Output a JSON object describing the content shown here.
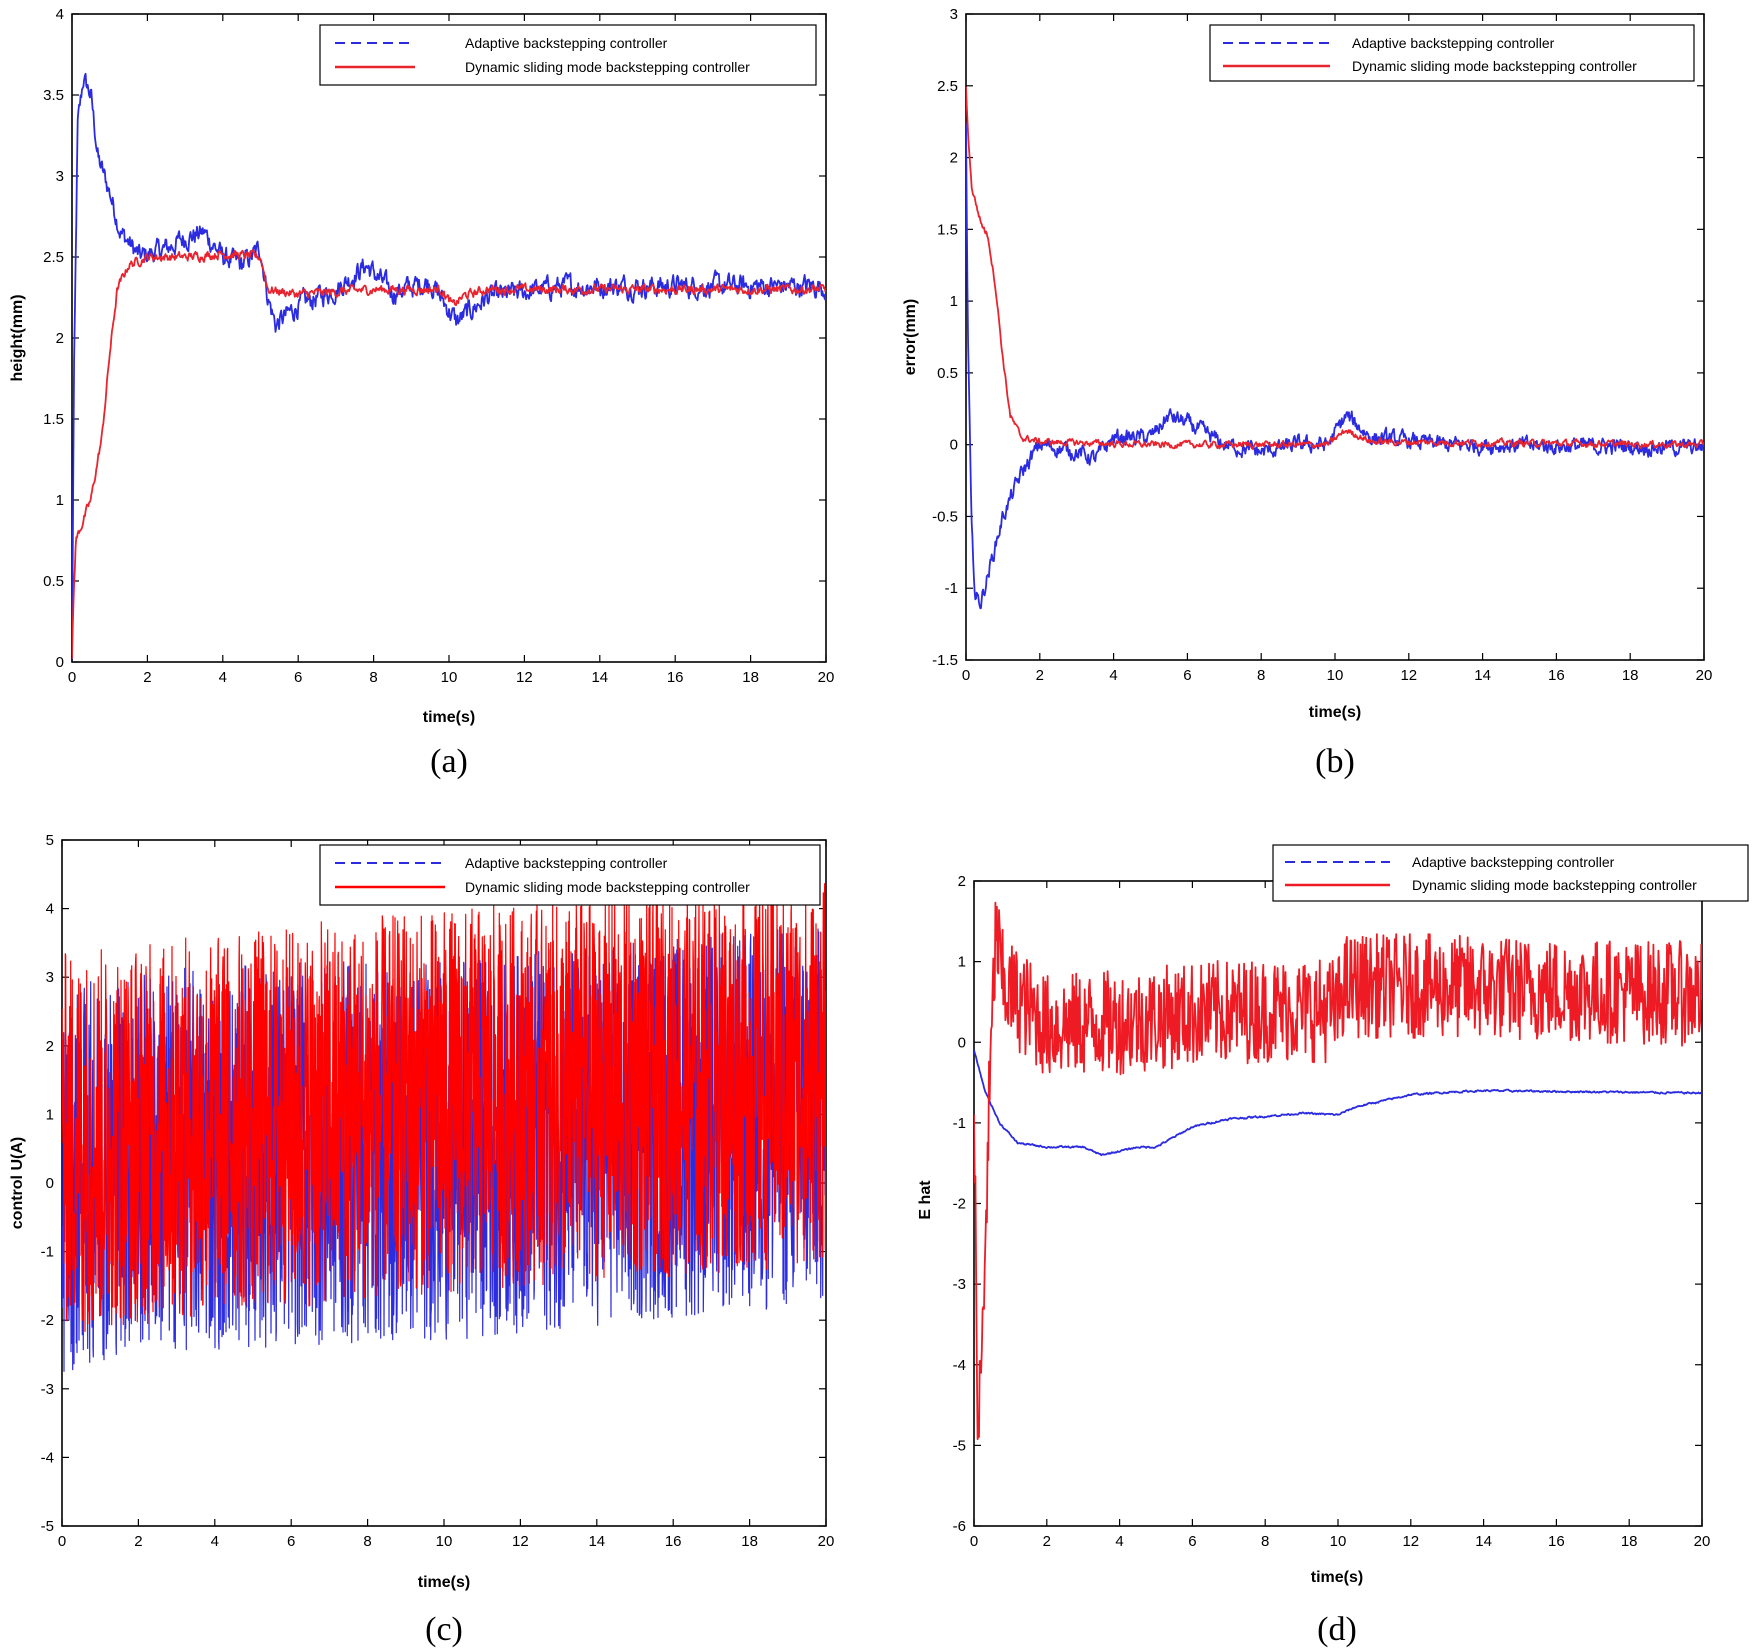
{
  "chart_data": [
    {
      "type": "line",
      "panel": "a",
      "caption": "(a)",
      "xlabel": "time(s)",
      "ylabel": "height(mm)",
      "xlim": [
        0,
        20
      ],
      "ylim": [
        0,
        4
      ],
      "xticks": [
        0,
        2,
        4,
        6,
        8,
        10,
        12,
        14,
        16,
        18,
        20
      ],
      "yticks": [
        0,
        0.5,
        1,
        1.5,
        2,
        2.5,
        3,
        3.5,
        4
      ],
      "legend": "top-right",
      "series": [
        {
          "name": "Adaptive backstepping controller",
          "color": "#2b2bdf",
          "noise": 0.06,
          "points": [
            [
              0,
              0
            ],
            [
              0.05,
              1.7
            ],
            [
              0.15,
              3.3
            ],
            [
              0.3,
              3.6
            ],
            [
              0.5,
              3.5
            ],
            [
              0.7,
              3.1
            ],
            [
              1.0,
              2.9
            ],
            [
              1.3,
              2.65
            ],
            [
              1.8,
              2.5
            ],
            [
              2.5,
              2.55
            ],
            [
              3.0,
              2.62
            ],
            [
              3.5,
              2.65
            ],
            [
              4.0,
              2.5
            ],
            [
              4.5,
              2.45
            ],
            [
              5.0,
              2.55
            ],
            [
              5.2,
              2.25
            ],
            [
              5.4,
              2.08
            ],
            [
              6.0,
              2.2
            ],
            [
              7.0,
              2.3
            ],
            [
              7.8,
              2.45
            ],
            [
              8.5,
              2.28
            ],
            [
              9.5,
              2.35
            ],
            [
              10.2,
              2.1
            ],
            [
              11.0,
              2.25
            ],
            [
              13.0,
              2.32
            ],
            [
              20,
              2.32
            ]
          ]
        },
        {
          "name": "Dynamic sliding mode backstepping controller",
          "color": "#e8242f",
          "noise": 0.025,
          "points": [
            [
              0,
              0
            ],
            [
              0.03,
              0.3
            ],
            [
              0.1,
              0.75
            ],
            [
              0.5,
              1.0
            ],
            [
              0.8,
              1.4
            ],
            [
              1.0,
              1.9
            ],
            [
              1.2,
              2.3
            ],
            [
              1.5,
              2.45
            ],
            [
              2.0,
              2.5
            ],
            [
              3.0,
              2.5
            ],
            [
              4.0,
              2.52
            ],
            [
              5.0,
              2.5
            ],
            [
              5.2,
              2.3
            ],
            [
              6.0,
              2.27
            ],
            [
              8.0,
              2.3
            ],
            [
              9.8,
              2.3
            ],
            [
              10.1,
              2.2
            ],
            [
              10.4,
              2.26
            ],
            [
              11.0,
              2.3
            ],
            [
              20,
              2.3
            ]
          ]
        }
      ]
    },
    {
      "type": "line",
      "panel": "b",
      "caption": "(b)",
      "xlabel": "time(s)",
      "ylabel": "error(mm)",
      "xlim": [
        0,
        20
      ],
      "ylim": [
        -1.5,
        3
      ],
      "xticks": [
        0,
        2,
        4,
        6,
        8,
        10,
        12,
        14,
        16,
        18,
        20
      ],
      "yticks": [
        -1.5,
        -1,
        -0.5,
        0,
        0.5,
        1,
        1.5,
        2,
        2.5,
        3
      ],
      "legend": "top-right",
      "series": [
        {
          "name": "Adaptive backstepping controller",
          "color": "#2b2bdf",
          "noise": 0.05,
          "points": [
            [
              0,
              2.2
            ],
            [
              0.05,
              0.8
            ],
            [
              0.15,
              -0.6
            ],
            [
              0.25,
              -1.05
            ],
            [
              0.4,
              -1.1
            ],
            [
              0.6,
              -0.9
            ],
            [
              1.0,
              -0.5
            ],
            [
              1.5,
              -0.2
            ],
            [
              2.0,
              0.0
            ],
            [
              3.0,
              -0.05
            ],
            [
              3.5,
              -0.1
            ],
            [
              4.0,
              0.05
            ],
            [
              5.0,
              0.05
            ],
            [
              5.5,
              0.2
            ],
            [
              6.0,
              0.15
            ],
            [
              7.0,
              0.0
            ],
            [
              8.0,
              -0.05
            ],
            [
              9.0,
              0.0
            ],
            [
              9.8,
              0.0
            ],
            [
              10.3,
              0.2
            ],
            [
              11.0,
              0.05
            ],
            [
              13.0,
              0.0
            ],
            [
              20,
              -0.02
            ]
          ]
        },
        {
          "name": "Dynamic sliding mode backstepping controller",
          "color": "#e8242f",
          "noise": 0.02,
          "points": [
            [
              0,
              2.5
            ],
            [
              0.05,
              2.2
            ],
            [
              0.15,
              1.8
            ],
            [
              0.4,
              1.55
            ],
            [
              0.6,
              1.45
            ],
            [
              0.8,
              1.1
            ],
            [
              1.0,
              0.6
            ],
            [
              1.2,
              0.2
            ],
            [
              1.5,
              0.05
            ],
            [
              2.0,
              0.02
            ],
            [
              5.0,
              0.0
            ],
            [
              9.8,
              0.0
            ],
            [
              10.3,
              0.1
            ],
            [
              11.0,
              0.02
            ],
            [
              20,
              0.0
            ]
          ]
        }
      ]
    },
    {
      "type": "line",
      "panel": "c",
      "caption": "(c)",
      "xlabel": "time(s)",
      "ylabel": "control U(A)",
      "xlim": [
        0,
        20
      ],
      "ylim": [
        -5,
        5
      ],
      "xticks": [
        0,
        2,
        4,
        6,
        8,
        10,
        12,
        14,
        16,
        18,
        20
      ],
      "yticks": [
        -5,
        -4,
        -3,
        -2,
        -1,
        0,
        1,
        2,
        3,
        4,
        5
      ],
      "legend": "top-right",
      "series": [
        {
          "name": "Adaptive backstepping controller",
          "color": "#2b2bdf",
          "noise": 2.8,
          "points": [
            [
              0,
              0
            ],
            [
              1.5,
              0.3
            ],
            [
              10,
              0.5
            ],
            [
              20,
              1.0
            ]
          ]
        },
        {
          "name": "Dynamic sliding mode backstepping controller",
          "color": "#ff0000",
          "noise": 2.8,
          "points": [
            [
              0,
              0.6
            ],
            [
              10,
              1.2
            ],
            [
              20,
              1.6
            ]
          ]
        }
      ]
    },
    {
      "type": "line",
      "panel": "d",
      "caption": "(d)",
      "xlabel": "time(s)",
      "ylabel": "E hat",
      "xlim": [
        0,
        20
      ],
      "ylim": [
        -6,
        2
      ],
      "xticks": [
        0,
        2,
        4,
        6,
        8,
        10,
        12,
        14,
        16,
        18,
        20
      ],
      "yticks": [
        -6,
        -5,
        -4,
        -3,
        -2,
        -1,
        0,
        1,
        2
      ],
      "legend": "top-right",
      "series": [
        {
          "name": "Adaptive backstepping controller",
          "color": "#2b2bdf",
          "noise": 0.01,
          "points": [
            [
              0,
              -0.1
            ],
            [
              0.3,
              -0.6
            ],
            [
              0.7,
              -1.0
            ],
            [
              1.2,
              -1.25
            ],
            [
              2.0,
              -1.3
            ],
            [
              3.0,
              -1.3
            ],
            [
              3.5,
              -1.4
            ],
            [
              4.5,
              -1.3
            ],
            [
              5.0,
              -1.3
            ],
            [
              6.0,
              -1.05
            ],
            [
              7.0,
              -0.95
            ],
            [
              8.0,
              -0.92
            ],
            [
              9.0,
              -0.88
            ],
            [
              10.0,
              -0.9
            ],
            [
              10.5,
              -0.8
            ],
            [
              12.0,
              -0.65
            ],
            [
              13.0,
              -0.62
            ],
            [
              14.0,
              -0.6
            ],
            [
              20,
              -0.63
            ]
          ]
        },
        {
          "name": "Dynamic sliding mode backstepping controller",
          "color": "#ee1b24",
          "noise": 0.65,
          "points": [
            [
              0,
              -0.5
            ],
            [
              0.1,
              -5.0
            ],
            [
              0.25,
              -3.5
            ],
            [
              0.4,
              -1.0
            ],
            [
              0.55,
              0.8
            ],
            [
              0.6,
              1.4
            ],
            [
              0.8,
              0.7
            ],
            [
              2.0,
              0.2
            ],
            [
              4.0,
              0.25
            ],
            [
              6.0,
              0.35
            ],
            [
              8.0,
              0.4
            ],
            [
              10.0,
              0.4
            ],
            [
              10.1,
              0.7
            ],
            [
              12.0,
              0.7
            ],
            [
              20,
              0.6
            ]
          ]
        }
      ]
    }
  ]
}
